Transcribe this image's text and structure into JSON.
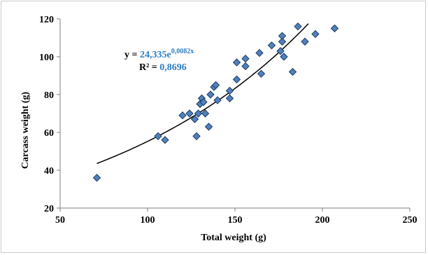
{
  "chart_data": {
    "type": "scatter",
    "title": "",
    "xlabel": "Total weight (g)",
    "ylabel": "Carcass weight (g)",
    "xlim": [
      50,
      250
    ],
    "ylim": [
      20,
      120
    ],
    "xticks": [
      "50",
      "100",
      "150",
      "200",
      "250"
    ],
    "yticks": [
      "20",
      "40",
      "60",
      "80",
      "100",
      "120"
    ],
    "grid": false,
    "legend": "none",
    "marker": "diamond",
    "colors": {
      "marker_fill": "#4F81BD",
      "marker_edge": "#1F3B63",
      "trend": "#000000",
      "equation_value": "#2E7FC2"
    },
    "points": [
      [
        71,
        36
      ],
      [
        106,
        58
      ],
      [
        110,
        56
      ],
      [
        120,
        69
      ],
      [
        124,
        70
      ],
      [
        127,
        67
      ],
      [
        128,
        58
      ],
      [
        129,
        70
      ],
      [
        130,
        75
      ],
      [
        131,
        78
      ],
      [
        133,
        70
      ],
      [
        132,
        76
      ],
      [
        135,
        63
      ],
      [
        136,
        80
      ],
      [
        138,
        84
      ],
      [
        139,
        85
      ],
      [
        140,
        77
      ],
      [
        147,
        82
      ],
      [
        147,
        78
      ],
      [
        151,
        88
      ],
      [
        151,
        97
      ],
      [
        156,
        99
      ],
      [
        156,
        95
      ],
      [
        164,
        102
      ],
      [
        165,
        91
      ],
      [
        171,
        106
      ],
      [
        176,
        103
      ],
      [
        177,
        111
      ],
      [
        177,
        108
      ],
      [
        178,
        100
      ],
      [
        183,
        92
      ],
      [
        186,
        116
      ],
      [
        190,
        108
      ],
      [
        196,
        112
      ],
      [
        207,
        115
      ]
    ],
    "trendline": {
      "type": "exponential",
      "a": 24.335,
      "b": 0.0082,
      "x_range": [
        71,
        192
      ],
      "equation_prefix": "y = ",
      "equation_coef": "24,335e",
      "equation_exp": "0,0082x",
      "r2_prefix": "R² = ",
      "r2_value": "0,8696"
    }
  }
}
